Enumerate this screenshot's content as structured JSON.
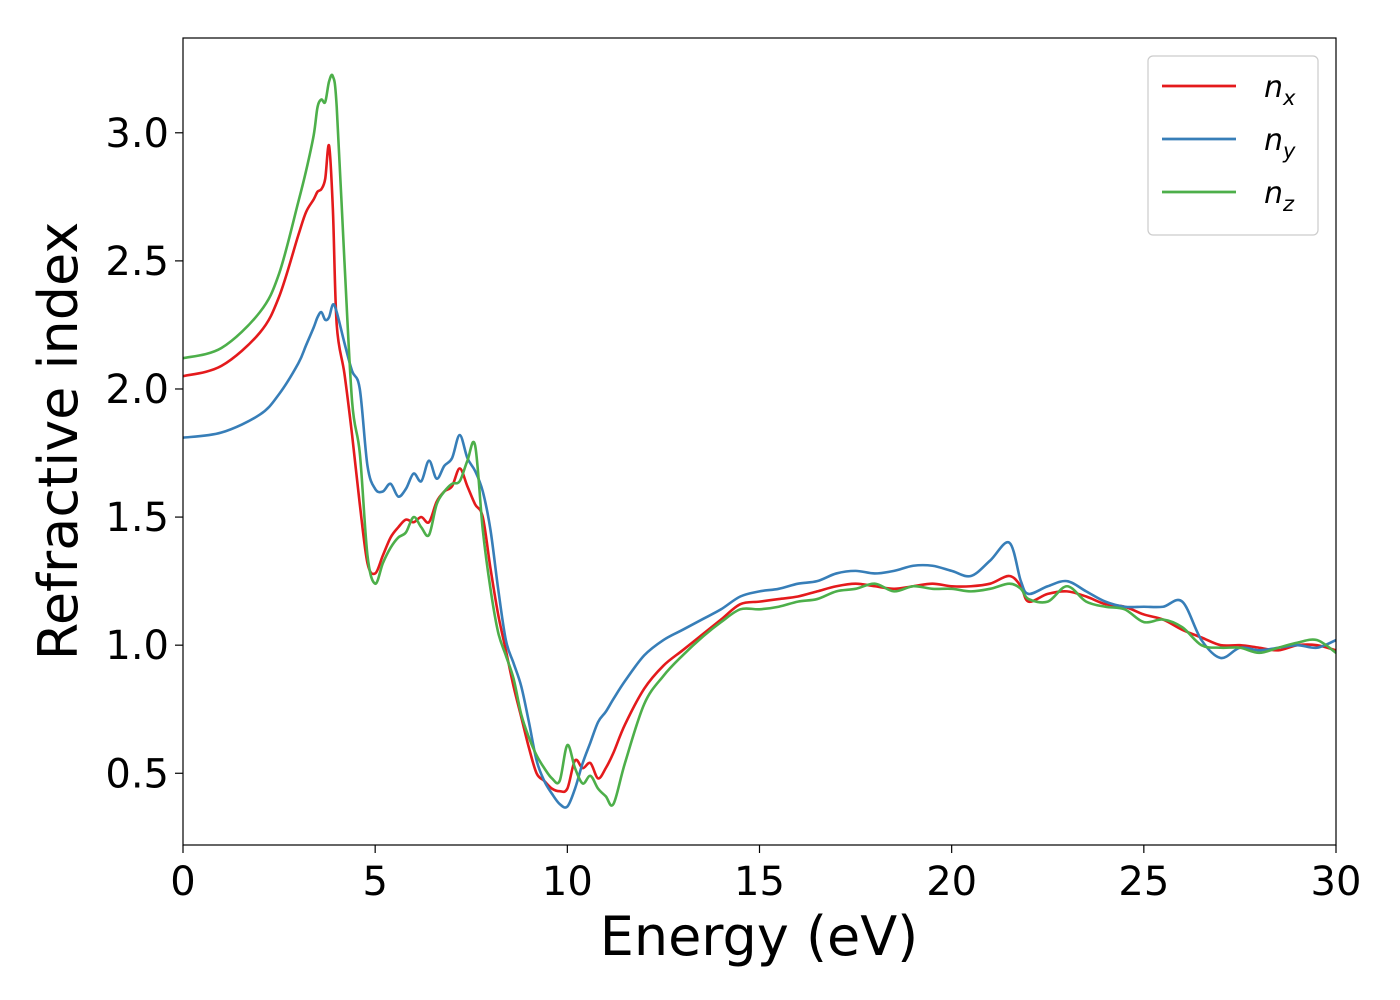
{
  "chart_data": {
    "type": "line",
    "title": "",
    "xlabel": "Energy (eV)",
    "ylabel": "Refractive index",
    "xlim": [
      0,
      30
    ],
    "ylim": [
      0.22,
      3.37
    ],
    "xticks": [
      0,
      5,
      10,
      15,
      20,
      25,
      30
    ],
    "yticks": [
      0.5,
      1.0,
      1.5,
      2.0,
      2.5,
      3.0
    ],
    "xtick_labels": [
      "0",
      "5",
      "10",
      "15",
      "20",
      "25",
      "30"
    ],
    "ytick_labels": [
      "0.5",
      "1.0",
      "1.5",
      "2.0",
      "2.5",
      "3.0"
    ],
    "grid": false,
    "legend_position": "top-right",
    "series": [
      {
        "name": "n",
        "subscript": "x",
        "color": "#e41a1c",
        "x": [
          0,
          1,
          2,
          2.5,
          3,
          3.2,
          3.4,
          3.5,
          3.6,
          3.7,
          3.8,
          3.9,
          4.0,
          4.2,
          4.4,
          4.6,
          4.8,
          5.0,
          5.2,
          5.4,
          5.6,
          5.8,
          6.0,
          6.2,
          6.4,
          6.6,
          6.8,
          7.0,
          7.2,
          7.4,
          7.6,
          7.8,
          8.0,
          8.2,
          8.4,
          8.6,
          8.8,
          9.0,
          9.2,
          9.4,
          9.6,
          9.8,
          10.0,
          10.2,
          10.4,
          10.6,
          10.8,
          11.0,
          11.2,
          11.5,
          12.0,
          12.5,
          13.0,
          13.5,
          14.0,
          14.5,
          15.0,
          15.5,
          16.0,
          16.5,
          17.0,
          17.5,
          18.0,
          18.5,
          19.0,
          19.5,
          20.0,
          20.5,
          21.0,
          21.5,
          21.8,
          22.0,
          22.5,
          23.0,
          23.5,
          24.0,
          24.5,
          25.0,
          25.5,
          26.0,
          26.5,
          27.0,
          27.5,
          28.0,
          28.5,
          29.0,
          29.5,
          30.0
        ],
        "y": [
          2.05,
          2.09,
          2.22,
          2.36,
          2.6,
          2.69,
          2.74,
          2.77,
          2.78,
          2.82,
          2.95,
          2.7,
          2.25,
          2.06,
          1.82,
          1.55,
          1.32,
          1.28,
          1.35,
          1.42,
          1.46,
          1.49,
          1.48,
          1.5,
          1.48,
          1.56,
          1.6,
          1.62,
          1.69,
          1.62,
          1.55,
          1.5,
          1.3,
          1.12,
          0.98,
          0.84,
          0.72,
          0.6,
          0.5,
          0.47,
          0.44,
          0.43,
          0.44,
          0.55,
          0.52,
          0.54,
          0.48,
          0.52,
          0.58,
          0.69,
          0.83,
          0.92,
          0.98,
          1.04,
          1.1,
          1.16,
          1.17,
          1.18,
          1.19,
          1.21,
          1.23,
          1.24,
          1.23,
          1.22,
          1.23,
          1.24,
          1.23,
          1.23,
          1.24,
          1.27,
          1.23,
          1.17,
          1.2,
          1.21,
          1.19,
          1.16,
          1.15,
          1.12,
          1.1,
          1.06,
          1.03,
          1.0,
          1.0,
          0.99,
          0.98,
          1.0,
          1.0,
          0.98
        ]
      },
      {
        "name": "n",
        "subscript": "y",
        "color": "#377eb8",
        "x": [
          0,
          1,
          2,
          2.5,
          3,
          3.2,
          3.4,
          3.5,
          3.6,
          3.7,
          3.8,
          3.9,
          4.0,
          4.2,
          4.4,
          4.6,
          4.8,
          5.0,
          5.2,
          5.4,
          5.6,
          5.8,
          6.0,
          6.2,
          6.4,
          6.6,
          6.8,
          7.0,
          7.2,
          7.4,
          7.6,
          7.8,
          8.0,
          8.2,
          8.4,
          8.6,
          8.8,
          9.0,
          9.2,
          9.4,
          9.6,
          9.8,
          10.0,
          10.2,
          10.4,
          10.6,
          10.8,
          11.0,
          11.2,
          11.5,
          12.0,
          12.5,
          13.0,
          13.5,
          14.0,
          14.5,
          15.0,
          15.5,
          16.0,
          16.5,
          17.0,
          17.5,
          18.0,
          18.5,
          19.0,
          19.5,
          20.0,
          20.5,
          21.0,
          21.5,
          21.8,
          22.0,
          22.5,
          23.0,
          23.5,
          24.0,
          24.5,
          25.0,
          25.5,
          26.0,
          26.5,
          27.0,
          27.5,
          28.0,
          28.5,
          29.0,
          29.5,
          30.0
        ],
        "y": [
          1.81,
          1.83,
          1.9,
          1.98,
          2.1,
          2.17,
          2.24,
          2.28,
          2.3,
          2.27,
          2.28,
          2.33,
          2.3,
          2.18,
          2.07,
          2.0,
          1.7,
          1.61,
          1.6,
          1.63,
          1.58,
          1.61,
          1.67,
          1.64,
          1.72,
          1.65,
          1.7,
          1.73,
          1.82,
          1.73,
          1.68,
          1.6,
          1.45,
          1.22,
          1.02,
          0.93,
          0.84,
          0.7,
          0.55,
          0.47,
          0.42,
          0.38,
          0.37,
          0.44,
          0.54,
          0.62,
          0.7,
          0.74,
          0.79,
          0.86,
          0.96,
          1.02,
          1.06,
          1.1,
          1.14,
          1.19,
          1.21,
          1.22,
          1.24,
          1.25,
          1.28,
          1.29,
          1.28,
          1.29,
          1.31,
          1.31,
          1.29,
          1.27,
          1.33,
          1.4,
          1.25,
          1.2,
          1.23,
          1.25,
          1.21,
          1.17,
          1.15,
          1.15,
          1.15,
          1.17,
          1.02,
          0.95,
          0.99,
          0.98,
          0.99,
          1.0,
          0.99,
          1.02
        ]
      },
      {
        "name": "n",
        "subscript": "z",
        "color": "#4daf4a",
        "x": [
          0,
          1,
          2,
          2.5,
          3,
          3.2,
          3.4,
          3.5,
          3.6,
          3.7,
          3.8,
          3.9,
          4.0,
          4.2,
          4.4,
          4.6,
          4.8,
          5.0,
          5.2,
          5.4,
          5.6,
          5.8,
          6.0,
          6.2,
          6.4,
          6.6,
          6.8,
          7.0,
          7.2,
          7.4,
          7.6,
          7.8,
          8.0,
          8.2,
          8.4,
          8.6,
          8.8,
          9.0,
          9.2,
          9.4,
          9.6,
          9.8,
          10.0,
          10.2,
          10.4,
          10.6,
          10.8,
          11.0,
          11.2,
          11.5,
          12.0,
          12.5,
          13.0,
          13.5,
          14.0,
          14.5,
          15.0,
          15.5,
          16.0,
          16.5,
          17.0,
          17.5,
          18.0,
          18.5,
          19.0,
          19.5,
          20.0,
          20.5,
          21.0,
          21.5,
          21.8,
          22.0,
          22.5,
          23.0,
          23.5,
          24.0,
          24.5,
          25.0,
          25.5,
          26.0,
          26.5,
          27.0,
          27.5,
          28.0,
          28.5,
          29.0,
          29.5,
          30.0
        ],
        "y": [
          2.12,
          2.16,
          2.3,
          2.45,
          2.73,
          2.85,
          2.99,
          3.1,
          3.13,
          3.12,
          3.2,
          3.22,
          3.1,
          2.5,
          1.95,
          1.75,
          1.35,
          1.24,
          1.32,
          1.38,
          1.42,
          1.44,
          1.5,
          1.46,
          1.43,
          1.55,
          1.6,
          1.63,
          1.64,
          1.72,
          1.78,
          1.45,
          1.22,
          1.05,
          0.96,
          0.87,
          0.73,
          0.64,
          0.57,
          0.52,
          0.48,
          0.47,
          0.61,
          0.52,
          0.46,
          0.49,
          0.44,
          0.41,
          0.38,
          0.54,
          0.77,
          0.88,
          0.96,
          1.03,
          1.09,
          1.14,
          1.14,
          1.15,
          1.17,
          1.18,
          1.21,
          1.22,
          1.24,
          1.21,
          1.23,
          1.22,
          1.22,
          1.21,
          1.22,
          1.24,
          1.22,
          1.18,
          1.17,
          1.23,
          1.17,
          1.15,
          1.14,
          1.09,
          1.1,
          1.07,
          1.0,
          0.99,
          0.99,
          0.97,
          0.99,
          1.01,
          1.02,
          0.97
        ]
      }
    ]
  }
}
